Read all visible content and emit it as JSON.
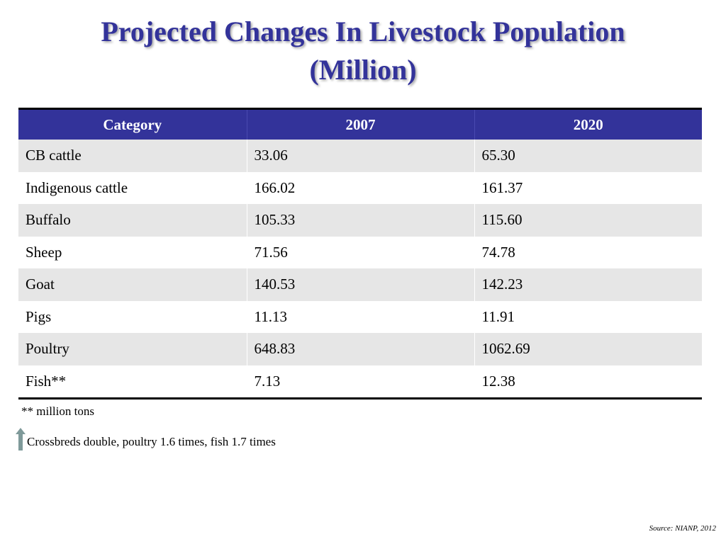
{
  "title": {
    "line1": "Projected Changes In Livestock Population",
    "line2": "(Million)"
  },
  "colors": {
    "title": "#33339a",
    "header_bg": "#33339a",
    "header_text": "#ffffff",
    "stripe": "#e6e6e6",
    "arrow": "#7f9a9a"
  },
  "table": {
    "headers": [
      "Category",
      "2007",
      "2020"
    ],
    "rows": [
      [
        "CB cattle",
        "33.06",
        "65.30"
      ],
      [
        "Indigenous cattle",
        "166.02",
        "161.37"
      ],
      [
        "Buffalo",
        "105.33",
        "115.60"
      ],
      [
        "Sheep",
        "71.56",
        "74.78"
      ],
      [
        "Goat",
        "140.53",
        "142.23"
      ],
      [
        "Pigs",
        "11.13",
        "11.91"
      ],
      [
        "Poultry",
        "648.83",
        "1062.69"
      ],
      [
        "Fish**",
        "7.13",
        "12.38"
      ]
    ]
  },
  "footnote": "** million tons",
  "note": {
    "icon": "up-arrow-icon",
    "text": "Crossbreds double, poultry 1.6 times, fish 1.7 times"
  },
  "source": "Source: NIANP, 2012"
}
